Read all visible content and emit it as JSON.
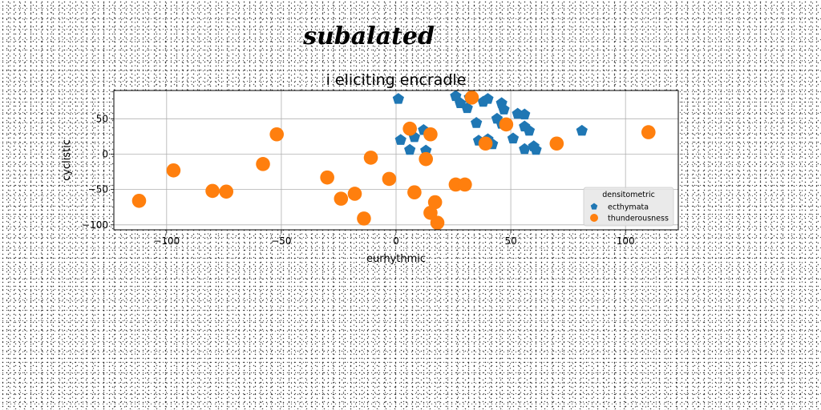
{
  "figure": {
    "suptitle": "subalated"
  },
  "chart_data": {
    "type": "scatter",
    "title": "i eliciting encradle",
    "xlabel": "eurhythmic",
    "ylabel": "cyclistic",
    "xlim": [
      -123,
      123
    ],
    "ylim": [
      -107,
      90
    ],
    "xticks": [
      -100,
      -50,
      0,
      50,
      100
    ],
    "yticks": [
      -100,
      -50,
      0,
      50
    ],
    "xtick_labels": [
      "−100",
      "−50",
      "0",
      "50",
      "100"
    ],
    "ytick_labels": [
      "−100",
      "−50",
      "0",
      "50"
    ],
    "grid": true,
    "legend": {
      "title": "densitometric",
      "position": "lower right"
    },
    "series": [
      {
        "name": "ecthymata",
        "marker": "pentagon",
        "color": "#1f77b4",
        "points": [
          [
            1,
            78
          ],
          [
            26,
            82
          ],
          [
            32,
            80
          ],
          [
            28,
            72
          ],
          [
            38,
            74
          ],
          [
            40,
            78
          ],
          [
            31,
            65
          ],
          [
            46,
            72
          ],
          [
            47,
            63
          ],
          [
            44,
            50
          ],
          [
            53,
            57
          ],
          [
            56,
            56
          ],
          [
            35,
            44
          ],
          [
            56,
            39
          ],
          [
            58,
            33
          ],
          [
            46,
            43
          ],
          [
            81,
            33
          ],
          [
            12,
            34
          ],
          [
            8,
            24
          ],
          [
            2,
            20
          ],
          [
            36,
            19
          ],
          [
            40,
            21
          ],
          [
            42,
            14
          ],
          [
            51,
            22
          ],
          [
            60,
            11
          ],
          [
            56,
            7
          ],
          [
            61,
            6
          ],
          [
            6,
            6
          ],
          [
            13,
            5
          ],
          [
            40,
            17
          ]
        ]
      },
      {
        "name": "thunderousness",
        "marker": "circle",
        "color": "#ff7f0e",
        "points": [
          [
            33,
            80
          ],
          [
            48,
            42
          ],
          [
            6,
            36
          ],
          [
            15,
            28
          ],
          [
            -52,
            28
          ],
          [
            110,
            31
          ],
          [
            70,
            15
          ],
          [
            39,
            15
          ],
          [
            -11,
            -5
          ],
          [
            13,
            -7
          ],
          [
            -58,
            -14
          ],
          [
            -97,
            -23
          ],
          [
            -3,
            -35
          ],
          [
            -30,
            -33
          ],
          [
            26,
            -43
          ],
          [
            30,
            -43
          ],
          [
            8,
            -54
          ],
          [
            -80,
            -52
          ],
          [
            -74,
            -53
          ],
          [
            -18,
            -56
          ],
          [
            -24,
            -63
          ],
          [
            17,
            -68
          ],
          [
            -112,
            -66
          ],
          [
            15,
            -83
          ],
          [
            -14,
            -91
          ],
          [
            18,
            -97
          ]
        ]
      }
    ]
  }
}
